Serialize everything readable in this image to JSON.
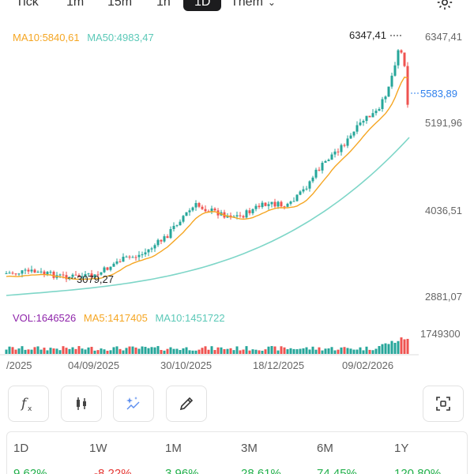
{
  "timeframes": {
    "tick": "Tick",
    "m1": "1m",
    "m15": "15m",
    "h1": "1h",
    "d1": "1D",
    "more": "Thêm"
  },
  "legend": {
    "ma10": "MA10:5840,61",
    "ma50": "MA50:4983,47",
    "vol": "VOL:1646526",
    "vol_ma5": "MA5:1417405",
    "vol_ma10": "MA10:1451722"
  },
  "colors": {
    "up": "#26a69a",
    "down": "#ef5350",
    "ma10": "#f5a623",
    "ma50": "#7ed6c8",
    "vol_label": "#9c27b0",
    "current_price": "#2f80ed"
  },
  "chart_data": {
    "type": "candlestick",
    "y_ticks": [
      "6347,41",
      "5583,89",
      "5191,96",
      "4036,51",
      "2881,07"
    ],
    "current_price": "5583,89",
    "high_marker": "6347,41",
    "low_marker": "3079,27",
    "volume_tick": "1749300",
    "x_ticks": [
      "/2025",
      "04/09/2025",
      "30/10/2025",
      "18/12/2025",
      "09/02/2026"
    ]
  },
  "tools": [
    "fx-icon",
    "candle-icon",
    "sparkle-icon",
    "pencil-icon",
    "fullscreen-icon"
  ],
  "performance": [
    {
      "label": "1D",
      "value": "9,62%",
      "dir": "up"
    },
    {
      "label": "1W",
      "value": "-8,22%",
      "dir": "down"
    },
    {
      "label": "1M",
      "value": "3,96%",
      "dir": "up"
    },
    {
      "label": "3M",
      "value": "28,61%",
      "dir": "up"
    },
    {
      "label": "6M",
      "value": "74,45%",
      "dir": "up"
    },
    {
      "label": "1Y",
      "value": "120,80%",
      "dir": "up"
    }
  ]
}
